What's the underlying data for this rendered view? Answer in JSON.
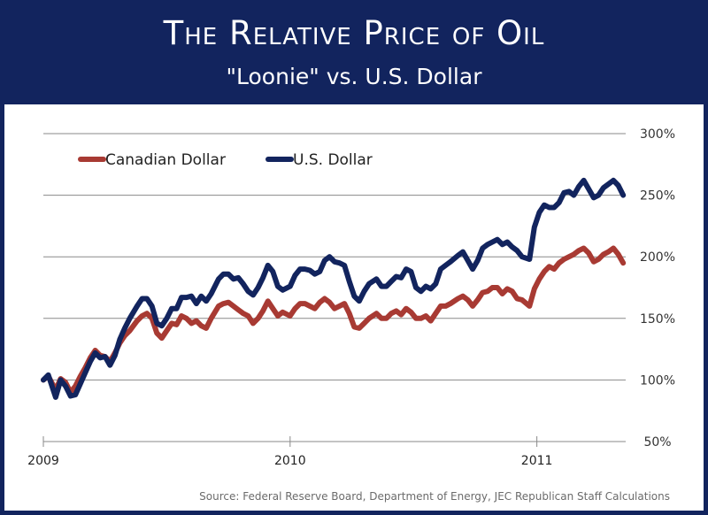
{
  "header": {
    "title": "The Relative Price of Oil",
    "subtitle": "\"Loonie\" vs. U.S. Dollar"
  },
  "source": "Source: Federal Reserve Board, Department of Energy, JEC Republican Staff Calculations",
  "chart_data": {
    "type": "line",
    "title": "The Relative Price of Oil",
    "subtitle": "\"Loonie\" vs. U.S. Dollar",
    "xlabel": "",
    "ylabel": "",
    "x_ticks": [
      "2009",
      "2010",
      "2011"
    ],
    "y_ticks": [
      "50%",
      "100%",
      "150%",
      "200%",
      "250%",
      "300%"
    ],
    "ylim": [
      50,
      300
    ],
    "xlim": [
      2009.0,
      2011.36
    ],
    "grid": true,
    "legend_position": "top-left",
    "series": [
      {
        "name": "Canadian Dollar",
        "color": "#a83a33",
        "x": [
          2009.0,
          2009.02,
          2009.05,
          2009.07,
          2009.09,
          2009.11,
          2009.13,
          2009.15,
          2009.17,
          2009.19,
          2009.21,
          2009.23,
          2009.25,
          2009.27,
          2009.29,
          2009.31,
          2009.33,
          2009.35,
          2009.38,
          2009.4,
          2009.42,
          2009.44,
          2009.46,
          2009.48,
          2009.5,
          2009.52,
          2009.54,
          2009.56,
          2009.58,
          2009.6,
          2009.62,
          2009.64,
          2009.66,
          2009.68,
          2009.71,
          2009.73,
          2009.75,
          2009.77,
          2009.79,
          2009.81,
          2009.83,
          2009.85,
          2009.87,
          2009.89,
          2009.91,
          2009.93,
          2009.95,
          2009.97,
          2010.0,
          2010.02,
          2010.04,
          2010.06,
          2010.08,
          2010.1,
          2010.12,
          2010.14,
          2010.16,
          2010.18,
          2010.2,
          2010.22,
          2010.24,
          2010.26,
          2010.28,
          2010.3,
          2010.32,
          2010.35,
          2010.37,
          2010.39,
          2010.41,
          2010.43,
          2010.45,
          2010.47,
          2010.49,
          2010.51,
          2010.53,
          2010.55,
          2010.57,
          2010.59,
          2010.61,
          2010.63,
          2010.65,
          2010.68,
          2010.7,
          2010.72,
          2010.74,
          2010.76,
          2010.78,
          2010.8,
          2010.82,
          2010.84,
          2010.86,
          2010.88,
          2010.9,
          2010.92,
          2010.94,
          2010.97,
          2010.99,
          2011.01,
          2011.03,
          2011.05,
          2011.07,
          2011.09,
          2011.11,
          2011.13,
          2011.15,
          2011.17,
          2011.19,
          2011.21,
          2011.23,
          2011.25,
          2011.27,
          2011.29,
          2011.31,
          2011.33,
          2011.35
        ],
        "values": [
          100,
          103,
          92,
          101,
          98,
          90,
          95,
          103,
          110,
          118,
          124,
          120,
          119,
          115,
          122,
          130,
          136,
          140,
          148,
          152,
          154,
          150,
          138,
          134,
          140,
          146,
          145,
          152,
          150,
          146,
          148,
          144,
          142,
          150,
          160,
          162,
          163,
          160,
          157,
          154,
          152,
          146,
          150,
          156,
          164,
          158,
          152,
          155,
          152,
          158,
          162,
          162,
          160,
          158,
          163,
          166,
          163,
          158,
          160,
          162,
          154,
          143,
          142,
          146,
          150,
          154,
          150,
          150,
          154,
          156,
          153,
          158,
          155,
          150,
          150,
          152,
          148,
          154,
          160,
          160,
          162,
          166,
          168,
          165,
          160,
          165,
          171,
          172,
          175,
          175,
          170,
          174,
          172,
          166,
          165,
          160,
          174,
          182,
          188,
          192,
          190,
          195,
          198,
          200,
          202,
          205,
          207,
          203,
          196,
          198,
          202,
          204,
          207,
          202,
          195
        ]
      },
      {
        "name": "U.S. Dollar",
        "color": "#12245e",
        "x": [
          2009.0,
          2009.02,
          2009.05,
          2009.07,
          2009.09,
          2009.11,
          2009.13,
          2009.15,
          2009.17,
          2009.19,
          2009.21,
          2009.23,
          2009.25,
          2009.27,
          2009.29,
          2009.31,
          2009.33,
          2009.35,
          2009.38,
          2009.4,
          2009.42,
          2009.44,
          2009.46,
          2009.48,
          2009.5,
          2009.52,
          2009.54,
          2009.56,
          2009.58,
          2009.6,
          2009.62,
          2009.64,
          2009.66,
          2009.68,
          2009.71,
          2009.73,
          2009.75,
          2009.77,
          2009.79,
          2009.81,
          2009.83,
          2009.85,
          2009.87,
          2009.89,
          2009.91,
          2009.93,
          2009.95,
          2009.97,
          2010.0,
          2010.02,
          2010.04,
          2010.06,
          2010.08,
          2010.1,
          2010.12,
          2010.14,
          2010.16,
          2010.18,
          2010.2,
          2010.22,
          2010.24,
          2010.26,
          2010.28,
          2010.3,
          2010.32,
          2010.35,
          2010.37,
          2010.39,
          2010.41,
          2010.43,
          2010.45,
          2010.47,
          2010.49,
          2010.51,
          2010.53,
          2010.55,
          2010.57,
          2010.59,
          2010.61,
          2010.63,
          2010.65,
          2010.68,
          2010.7,
          2010.72,
          2010.74,
          2010.76,
          2010.78,
          2010.8,
          2010.82,
          2010.84,
          2010.86,
          2010.88,
          2010.9,
          2010.92,
          2010.94,
          2010.97,
          2010.99,
          2011.01,
          2011.03,
          2011.05,
          2011.07,
          2011.09,
          2011.11,
          2011.13,
          2011.15,
          2011.17,
          2011.19,
          2011.21,
          2011.23,
          2011.25,
          2011.27,
          2011.29,
          2011.31,
          2011.33,
          2011.35
        ],
        "values": [
          100,
          104,
          86,
          100,
          95,
          87,
          88,
          97,
          106,
          115,
          122,
          118,
          119,
          112,
          120,
          133,
          142,
          150,
          160,
          166,
          166,
          160,
          146,
          144,
          150,
          158,
          158,
          167,
          167,
          168,
          162,
          168,
          164,
          170,
          182,
          186,
          186,
          182,
          183,
          178,
          172,
          169,
          175,
          183,
          193,
          188,
          176,
          173,
          176,
          185,
          190,
          190,
          189,
          186,
          188,
          197,
          200,
          196,
          195,
          193,
          180,
          168,
          164,
          172,
          178,
          182,
          176,
          176,
          180,
          184,
          183,
          190,
          188,
          175,
          172,
          176,
          174,
          178,
          190,
          193,
          196,
          201,
          204,
          197,
          190,
          197,
          207,
          210,
          212,
          214,
          210,
          212,
          208,
          205,
          200,
          198,
          224,
          236,
          242,
          240,
          240,
          244,
          252,
          253,
          250,
          257,
          262,
          255,
          248,
          250,
          256,
          259,
          262,
          258,
          250
        ]
      }
    ]
  }
}
